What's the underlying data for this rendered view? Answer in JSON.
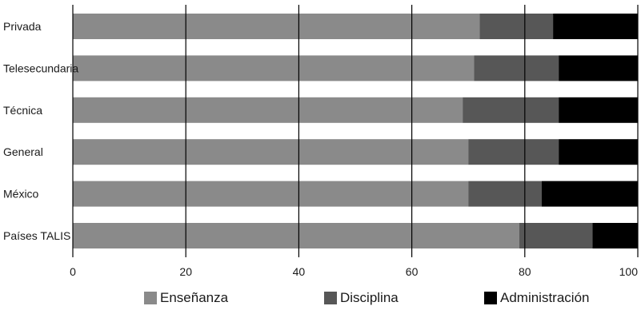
{
  "chart_data": {
    "type": "bar",
    "orientation": "horizontal",
    "stacked": true,
    "categories": [
      "Privada",
      "Telesecundaria",
      "Técnica",
      "General",
      "México",
      "Países TALIS"
    ],
    "series": [
      {
        "name": "Enseñanza",
        "color": "#8a8a8a",
        "values": [
          72,
          71,
          69,
          70,
          70,
          79
        ]
      },
      {
        "name": "Disciplina",
        "color": "#575757",
        "values": [
          13,
          15,
          17,
          16,
          13,
          13
        ]
      },
      {
        "name": "Administración",
        "color": "#000000",
        "values": [
          15,
          14,
          14,
          14,
          17,
          8
        ]
      }
    ],
    "xlim": [
      0,
      100
    ],
    "xticks": [
      "0",
      "20",
      "40",
      "60",
      "80",
      "100"
    ],
    "grid": "vertical",
    "legend_position": "bottom"
  }
}
